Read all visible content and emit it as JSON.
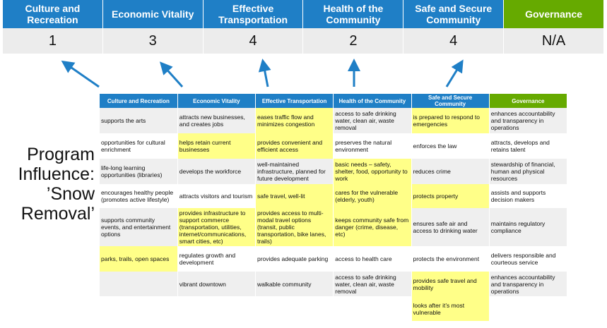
{
  "top": {
    "headers": [
      "Culture and Recreation",
      "Economic Vitality",
      "Effective Transportation",
      "Health of the Community",
      "Safe and Secure Community",
      "Governance"
    ],
    "values": [
      "1",
      "3",
      "4",
      "2",
      "4",
      "N/A"
    ]
  },
  "side_label": [
    "Program",
    "Influence:",
    "’Snow",
    "Removal’"
  ],
  "colors": {
    "header_blue": "#1f7fc6",
    "governance_green": "#66aa00",
    "highlight": "#ffff88",
    "row_gray": "#efefef"
  },
  "table": {
    "headers": [
      "Culture and Recreation",
      "Economic Vitality",
      "Effective Transportation",
      "Health of the Community",
      "Safe and Secure Community",
      "Governance"
    ],
    "rows": [
      {
        "cells": [
          "supports the arts",
          "attracts new businesses, and creates jobs",
          "eases traffic flow and minimizes congestion",
          "access to safe drinking water, clean air, waste removal",
          "is prepared to respond to emergencies",
          "enhances accountability and transparency in operations"
        ],
        "highlight": [
          2,
          4
        ]
      },
      {
        "cells": [
          "opportunities for cultural enrichment",
          "helps retain current businesses",
          "provides convenient and efficient access",
          "preserves the natural environment",
          "enforces the law",
          "attracts, develops and retains talent"
        ],
        "highlight": [
          1,
          2
        ]
      },
      {
        "cells": [
          "life-long learning opportunities (libraries)",
          "develops the workforce",
          "well-maintained infrastructure, planned for future development",
          "basic needs – safety, shelter, food, opportunity to work",
          "reduces crime",
          "stewardship of financial, human and physical resources"
        ],
        "highlight": [
          3
        ]
      },
      {
        "cells": [
          "encourages healthy people (promotes active lifestyle)",
          "attracts visitors and tourism",
          "safe travel, well-lit",
          "cares for the vulnerable (elderly, youth)",
          "protects property",
          "assists and supports decision makers"
        ],
        "highlight": [
          2,
          3,
          4
        ]
      },
      {
        "cells": [
          "supports community events, and entertainment options",
          "provides infrastructure to support commerce (transportation, utilities, internet/communications, smart cities, etc)",
          "provides access to multi-modal travel options (transit, public transportation, bike lanes, trails)",
          "keeps community safe from danger (crime, disease, etc)",
          "ensures safe air and access to drinking water",
          "maintains regulatory compliance"
        ],
        "highlight": [
          1,
          2,
          3
        ]
      },
      {
        "cells": [
          "parks, trails, open spaces",
          "regulates growth and development",
          "provides adequate parking",
          "access to health care",
          "protects the environment",
          "delivers responsible and courteous service"
        ],
        "highlight": [
          0
        ]
      },
      {
        "cells": [
          "",
          "vibrant downtown",
          "walkable community",
          "access to safe drinking water, clean air, waste removal",
          "provides safe travel and mobility",
          "enhances accountability and transparency in operations"
        ],
        "highlight": [
          4
        ]
      },
      {
        "cells": [
          "",
          "",
          "",
          "",
          "looks after it’s most vulnerable",
          ""
        ],
        "highlight": [
          4
        ]
      }
    ]
  }
}
